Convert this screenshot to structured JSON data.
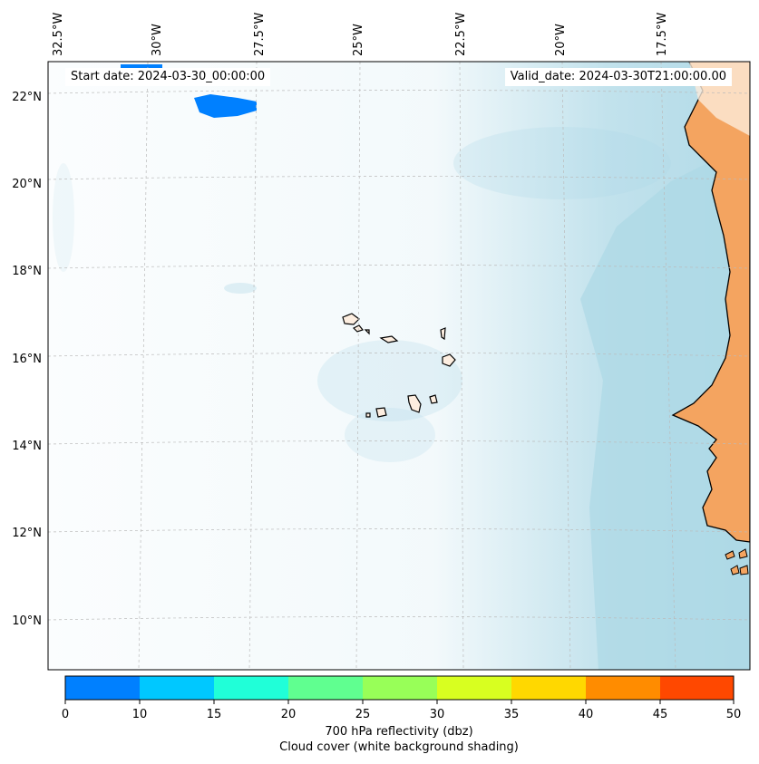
{
  "map": {
    "lon_ticks": [
      "32.5°W",
      "30°W",
      "27.5°W",
      "25°W",
      "22.5°W",
      "20°W",
      "17.5°W"
    ],
    "lat_ticks": [
      "22°N",
      "20°N",
      "18°N",
      "16°N",
      "14°N",
      "12°N",
      "10°N"
    ],
    "start_date": "Start date: 2024-03-30_00:00:00",
    "valid_date": "Valid_date: 2024-03-30T21:00:00.00",
    "ocean_color": "#ffffff",
    "land_color": "#f4a460",
    "cloud_color": "#add8e6",
    "gridlines": true
  },
  "colorbar": {
    "ticks": [
      "0",
      "10",
      "15",
      "20",
      "25",
      "30",
      "35",
      "40",
      "45",
      "50"
    ],
    "colors": [
      "#0080ff",
      "#00c8ff",
      "#20ffd8",
      "#60ff90",
      "#98ff58",
      "#d8ff20",
      "#ffd800",
      "#ff8c00",
      "#ff4800"
    ],
    "title": "700 hPa reflectivity (dbz)",
    "subtitle": "Cloud cover (white background shading)"
  }
}
